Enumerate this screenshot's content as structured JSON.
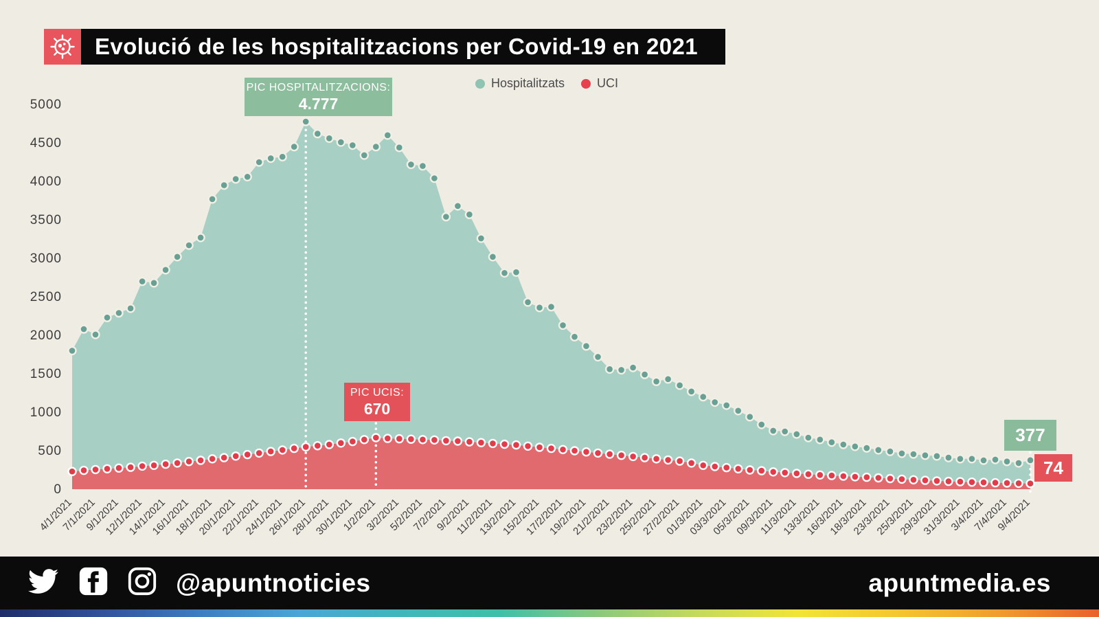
{
  "header": {
    "title": "Evolució de les hospitalitzacions per Covid-19 en 2021"
  },
  "legend": {
    "items": [
      {
        "label": "Hospitalitzats",
        "color": "#8fc4b2"
      },
      {
        "label": "UCI",
        "color": "#e8404d"
      }
    ]
  },
  "chart_data": {
    "type": "area",
    "title": "Evolució de les hospitalitzacions per Covid-19 en 2021",
    "xlabel": "",
    "ylabel": "",
    "ylim": [
      0,
      5000
    ],
    "yticks": [
      0,
      500,
      1000,
      1500,
      2000,
      2500,
      3000,
      3500,
      4000,
      4500,
      5000
    ],
    "grid": false,
    "legend_position": "top-center",
    "xlabels": [
      "4/1/2021",
      "7/1/2021",
      "9/1/2021",
      "12/1/2021",
      "14/1/2021",
      "16/1/2021",
      "18/1/2021",
      "20/1/2021",
      "22/1/2021",
      "24/1/2021",
      "26/1/2021",
      "28/1/2021",
      "30/1/2021",
      "1/2/2021",
      "3/2/2021",
      "5/2/2021",
      "7/2/2021",
      "9/2/2021",
      "11/2/2021",
      "13/2/2021",
      "15/2/2021",
      "17/2/2021",
      "19/2/2021",
      "21/2/2021",
      "23/2/2021",
      "25/2/2021",
      "27/2/2021",
      "01/3/2021",
      "03/3/2021",
      "05/3/2021",
      "09/3/2021",
      "11/3/2021",
      "13/3/2021",
      "16/3/2021",
      "18/3/2021",
      "23/3/2021",
      "25/3/2021",
      "29/3/2021",
      "31/3/2021",
      "3/4/2021",
      "7/4/2021",
      "9/4/2021"
    ],
    "series": [
      {
        "name": "Hospitalitzats",
        "area_color": "#a7cfc3",
        "dot_color": "#68a093",
        "dot_stroke": "#f2efe7",
        "values": [
          1800,
          2080,
          2010,
          2230,
          2290,
          2350,
          2700,
          2680,
          2850,
          3020,
          3170,
          3270,
          3770,
          3950,
          4030,
          4060,
          4250,
          4300,
          4320,
          4450,
          4777,
          4620,
          4560,
          4510,
          4470,
          4340,
          4450,
          4600,
          4440,
          4220,
          4200,
          4040,
          3540,
          3680,
          3570,
          3260,
          3020,
          2810,
          2820,
          2430,
          2360,
          2370,
          2130,
          1980,
          1860,
          1720,
          1560,
          1550,
          1580,
          1490,
          1400,
          1430,
          1350,
          1270,
          1200,
          1130,
          1090,
          1020,
          940,
          840,
          760,
          750,
          715,
          670,
          645,
          610,
          580,
          555,
          535,
          510,
          490,
          465,
          455,
          440,
          430,
          410,
          395,
          395,
          375,
          385,
          360,
          340,
          377
        ]
      },
      {
        "name": "UCI",
        "area_color": "#e16a6f",
        "dot_color": "#e23c4b",
        "dot_stroke": "#ffffff",
        "values": [
          230,
          245,
          255,
          265,
          275,
          285,
          300,
          310,
          325,
          340,
          360,
          375,
          395,
          410,
          430,
          450,
          470,
          490,
          510,
          530,
          550,
          565,
          580,
          600,
          620,
          645,
          670,
          660,
          655,
          650,
          645,
          640,
          630,
          625,
          615,
          605,
          595,
          585,
          575,
          560,
          545,
          530,
          515,
          500,
          485,
          470,
          455,
          440,
          425,
          410,
          395,
          380,
          365,
          340,
          310,
          295,
          280,
          265,
          250,
          240,
          225,
          215,
          205,
          195,
          185,
          178,
          170,
          162,
          155,
          147,
          138,
          130,
          122,
          115,
          108,
          102,
          97,
          92,
          88,
          84,
          80,
          77,
          74
        ]
      }
    ],
    "annotations": {
      "peak_hosp": {
        "index": 20,
        "label": "PIC HOSPITALITZACIONS:",
        "value": "4.777",
        "box_color": "#8cbe9e"
      },
      "peak_uci": {
        "index": 26,
        "label": "PIC UCIS:",
        "value": "670",
        "box_color": "#e25258"
      },
      "end_hosp": {
        "value": "377",
        "box_color": "#8abb9a"
      },
      "end_uci": {
        "value": "74",
        "box_color": "#e25258"
      }
    },
    "axis_text_color": "#3c3c3c"
  },
  "footer": {
    "handle": "@apuntnoticies",
    "site": "apuntmedia.es",
    "icons": [
      "twitter-icon",
      "facebook-icon",
      "instagram-icon"
    ],
    "strip_colors": [
      "#1d2d69",
      "#31519b",
      "#3d7dc1",
      "#4aa6d6",
      "#40b6bb",
      "#3fbfa8",
      "#8cc97c",
      "#c6da5c",
      "#f2e436",
      "#f4c52f",
      "#f09c2e",
      "#e9612c"
    ]
  },
  "colors": {
    "background": "#efece4",
    "bar_black": "#0b0b0b",
    "header_icon_box": "#e9555d",
    "dotted_line": "#ffffff"
  }
}
